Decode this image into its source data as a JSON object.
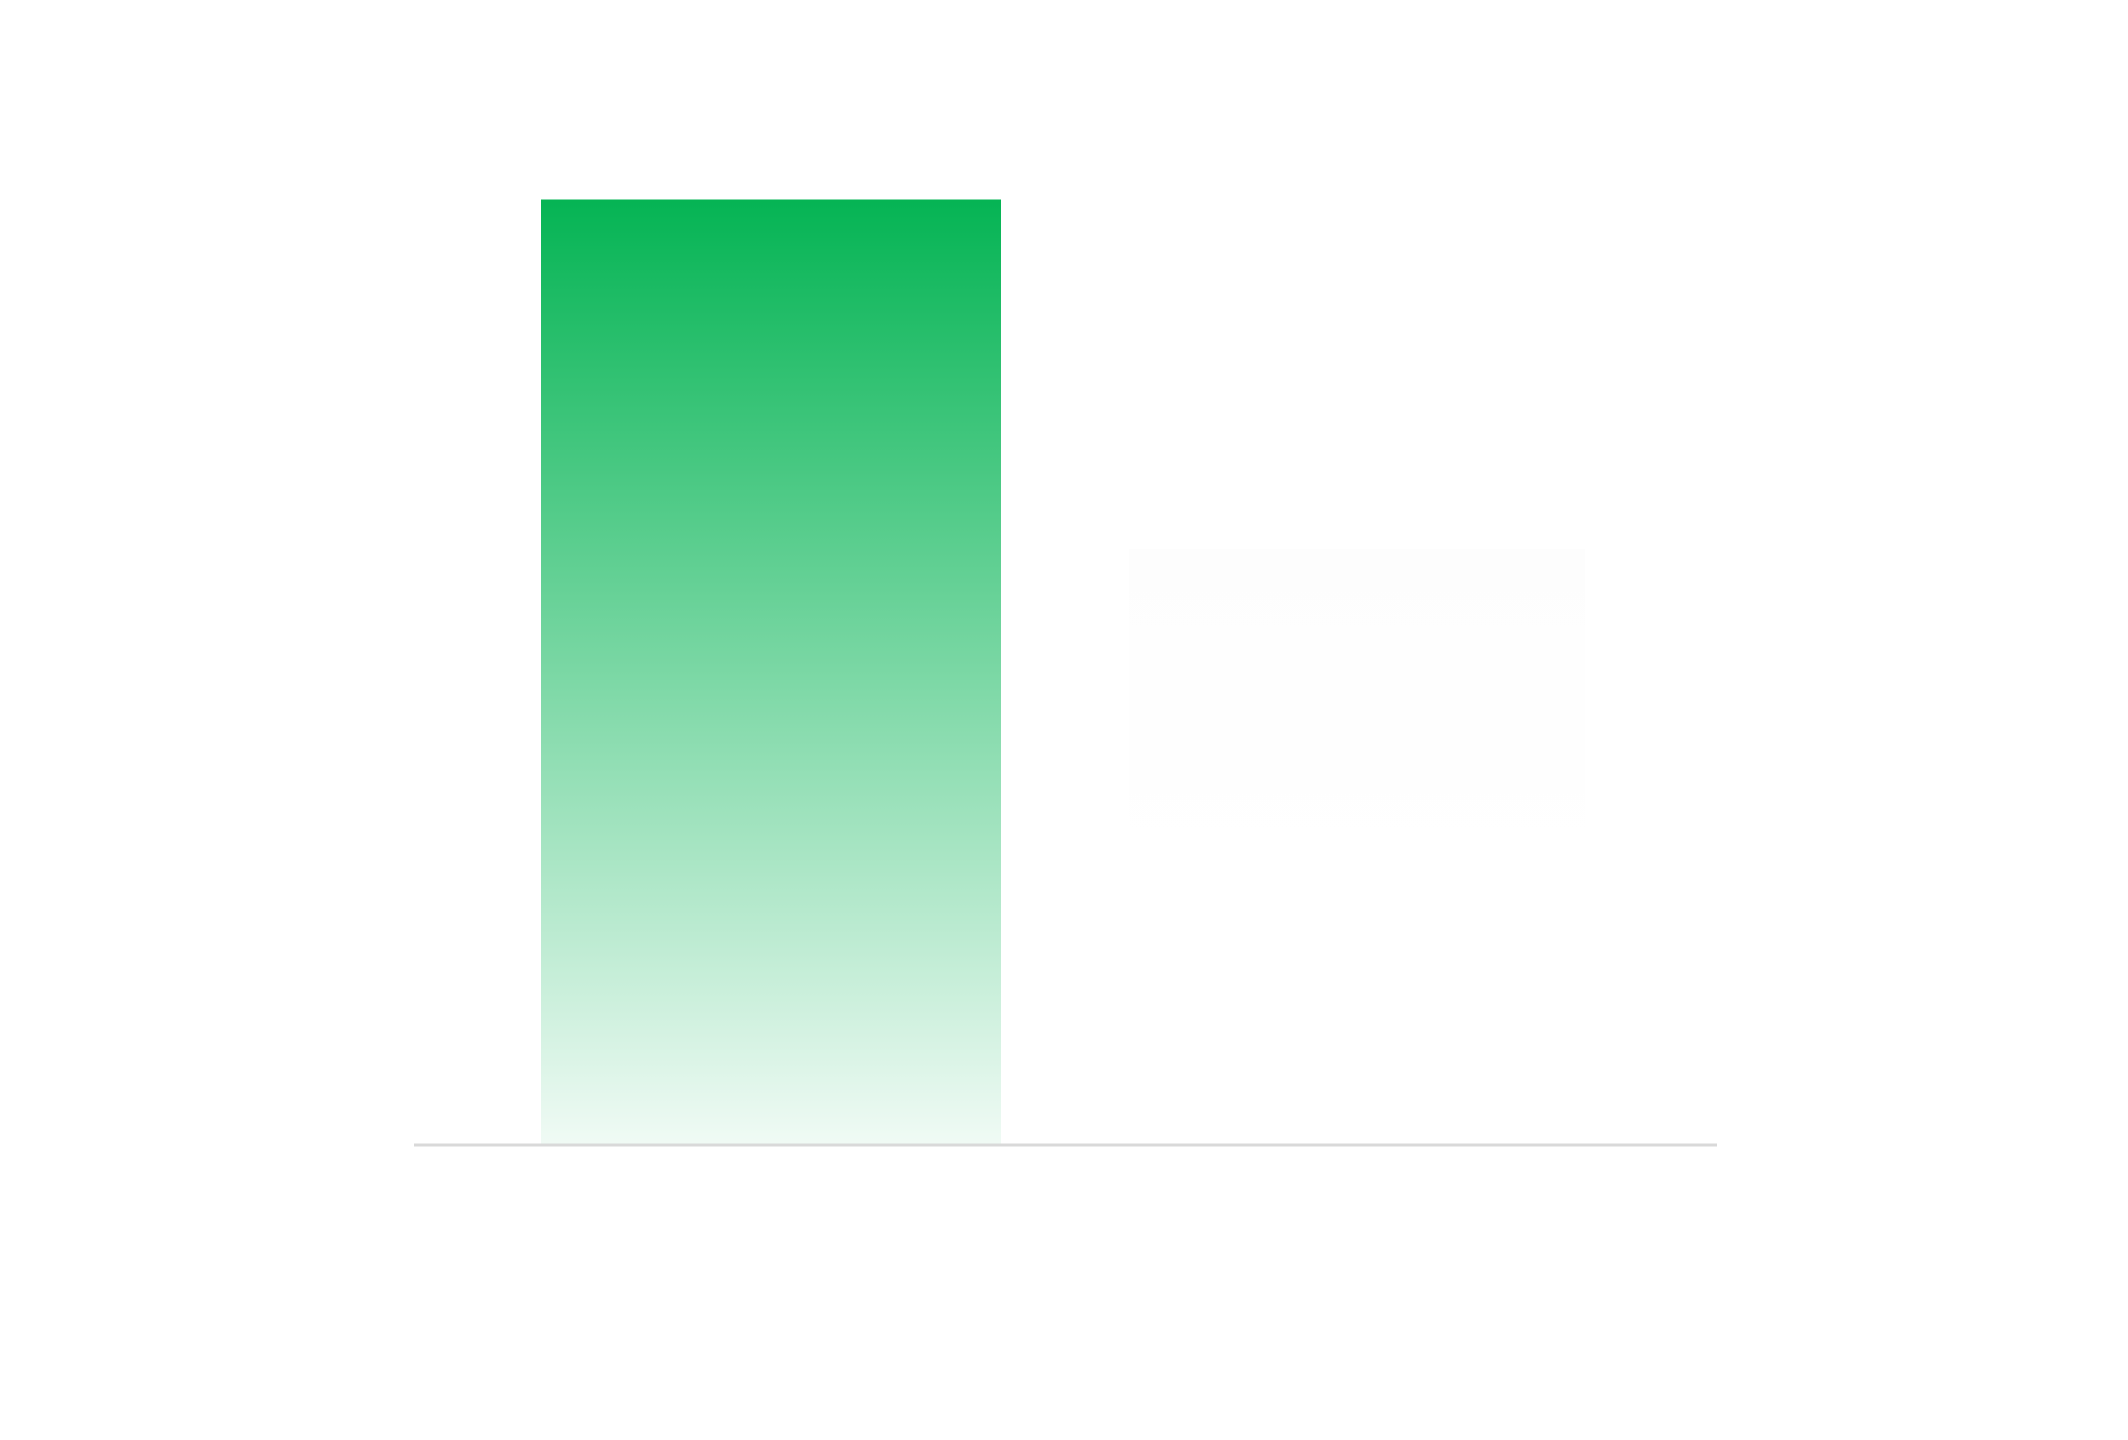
{
  "chart_data": {
    "type": "bar",
    "categories": [
      null,
      null
    ],
    "values": [
      100,
      63
    ],
    "base": [
      0,
      31
    ],
    "colors": [
      "#05b454",
      "#fdfdfd"
    ],
    "gradient": true,
    "ylim": [
      0,
      100
    ]
  }
}
